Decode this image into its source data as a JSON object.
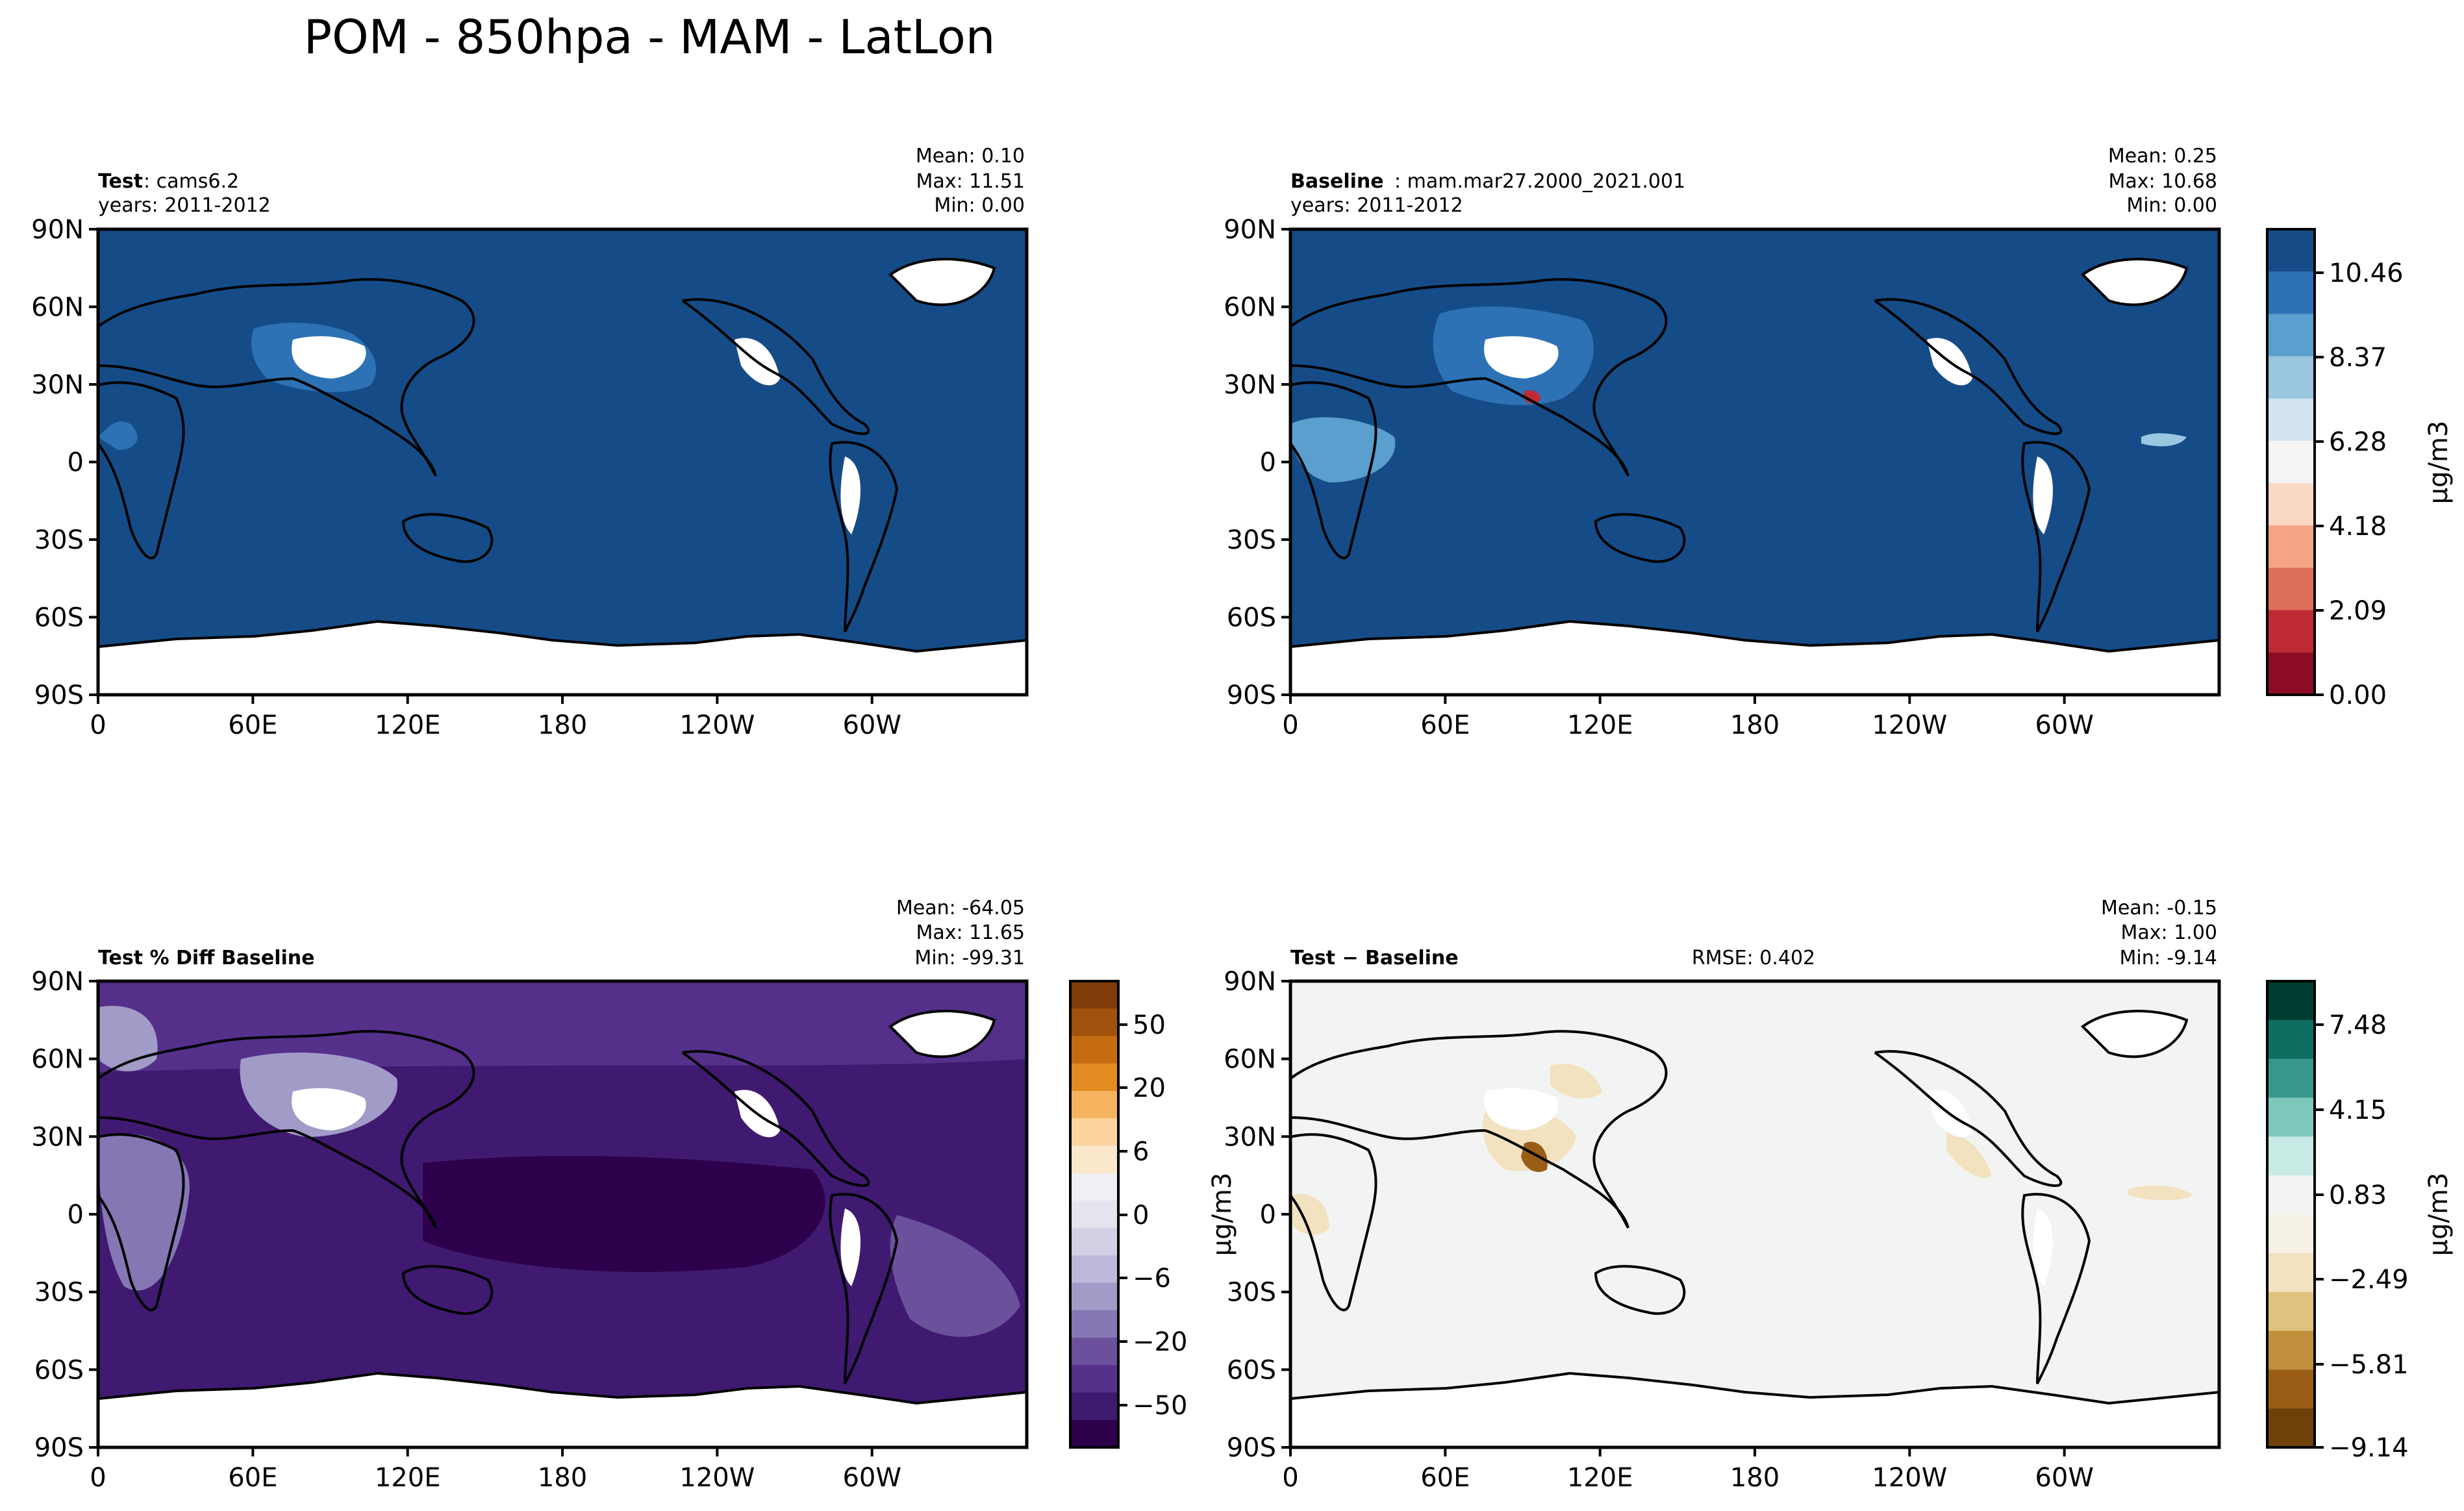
{
  "figure": {
    "title": "POM - 850hpa - MAM - LatLon"
  },
  "chart_data": [
    {
      "type": "heatmap",
      "panel": "test",
      "projection": "PlateCarree (0–360 longitude)",
      "header": {
        "bold": "Test",
        "text": ": cams6.2",
        "years": "years: 2011-2012"
      },
      "stats": {
        "mean": "Mean:  0.10",
        "max": "Max: 11.51",
        "min": "Min:  0.00"
      },
      "values": {
        "mean": 0.1,
        "max": 11.51,
        "min": 0.0
      },
      "x_ticks": [
        "0",
        "60E",
        "120E",
        "180",
        "120W",
        "60W"
      ],
      "y_ticks": [
        "90N",
        "60N",
        "30N",
        "0",
        "30S",
        "60S",
        "90S"
      ],
      "xlim": [
        0,
        360
      ],
      "ylim": [
        -90,
        90
      ],
      "colormap": "RdBu_r",
      "colorbar": "shared with baseline"
    },
    {
      "type": "heatmap",
      "panel": "baseline",
      "projection": "PlateCarree (0–360 longitude)",
      "header": {
        "bold": "Baseline",
        "text": ": mam.mar27.2000_2021.001",
        "years": "years: 2011-2012"
      },
      "stats": {
        "mean": "Mean:  0.25",
        "max": "Max: 10.68",
        "min": "Min:  0.00"
      },
      "values": {
        "mean": 0.25,
        "max": 10.68,
        "min": 0.0
      },
      "x_ticks": [
        "0",
        "60E",
        "120E",
        "180",
        "120W",
        "60W"
      ],
      "y_ticks": [
        "90N",
        "60N",
        "30N",
        "0",
        "30S",
        "60S",
        "90S"
      ],
      "xlim": [
        0,
        360
      ],
      "ylim": [
        -90,
        90
      ],
      "colormap": "RdBu_r",
      "colorbar": {
        "ticks": [
          "0.00",
          "2.09",
          "4.18",
          "6.28",
          "8.37",
          "10.46"
        ],
        "label": "μg/m3",
        "colors": [
          "#154c87",
          "#2c72b5",
          "#5a9fcd",
          "#9ac6e0",
          "#d2e4ef",
          "#f5f5f5",
          "#fbd8c6",
          "#f3a584",
          "#dd6f59",
          "#bf2b34",
          "#8d0c25"
        ]
      }
    },
    {
      "type": "heatmap",
      "panel": "percent-diff",
      "projection": "PlateCarree (0–360 longitude)",
      "header": {
        "bold": "Test % Diff Baseline"
      },
      "stats": {
        "mean": "Mean: -64.05",
        "max": "Max: 11.65",
        "min": "Min: -99.31"
      },
      "values": {
        "mean": -64.05,
        "max": 11.65,
        "min": -99.31
      },
      "x_ticks": [
        "0",
        "60E",
        "120E",
        "180",
        "120W",
        "60W"
      ],
      "y_ticks": [
        "90N",
        "60N",
        "30N",
        "0",
        "30S",
        "60S",
        "90S"
      ],
      "xlim": [
        0,
        360
      ],
      "ylim": [
        -90,
        90
      ],
      "colormap": "PuOr_r",
      "colorbar": {
        "ticks": [
          "50",
          "20",
          "6",
          "0",
          "−6",
          "−20",
          "−50"
        ],
        "colors": [
          "#7f3b08",
          "#a1520c",
          "#c46d10",
          "#e08c20",
          "#f6b35f",
          "#fdd4a0",
          "#fbe7cb",
          "#f1eef4",
          "#e6e3ef",
          "#d3d0e6",
          "#bdb8da",
          "#a19bc8",
          "#8577b4",
          "#6b509b",
          "#55308a",
          "#3f1a70",
          "#2d004b"
        ]
      }
    },
    {
      "type": "heatmap",
      "panel": "difference",
      "projection": "PlateCarree (0–360 longitude)",
      "header": {
        "bold": "Test − Baseline",
        "rmse": "RMSE: 0.402"
      },
      "stats": {
        "mean": "Mean: -0.15",
        "max": "Max:  1.00",
        "min": "Min: -9.14"
      },
      "values": {
        "mean": -0.15,
        "max": 1.0,
        "min": -9.14,
        "rmse": 0.402
      },
      "x_ticks": [
        "0",
        "60E",
        "120E",
        "180",
        "120W",
        "60W"
      ],
      "y_ticks": [
        "90N",
        "60N",
        "30N",
        "0",
        "30S",
        "60S",
        "90S"
      ],
      "xlim": [
        0,
        360
      ],
      "ylim": [
        -90,
        90
      ],
      "colormap": "BrBG",
      "colorbar": {
        "ticks": [
          "7.48",
          "4.15",
          "0.83",
          "−2.49",
          "−5.81",
          "−9.14"
        ],
        "label": "μg/m3",
        "left_label": "μg/m3",
        "colors": [
          "#003c30",
          "#0f6e62",
          "#37978d",
          "#7fc8bc",
          "#c7eae5",
          "#f2f4f3",
          "#f5f1e5",
          "#f3e2bf",
          "#dfc27d",
          "#c2903d",
          "#9a5d15",
          "#6e400a"
        ]
      }
    }
  ]
}
